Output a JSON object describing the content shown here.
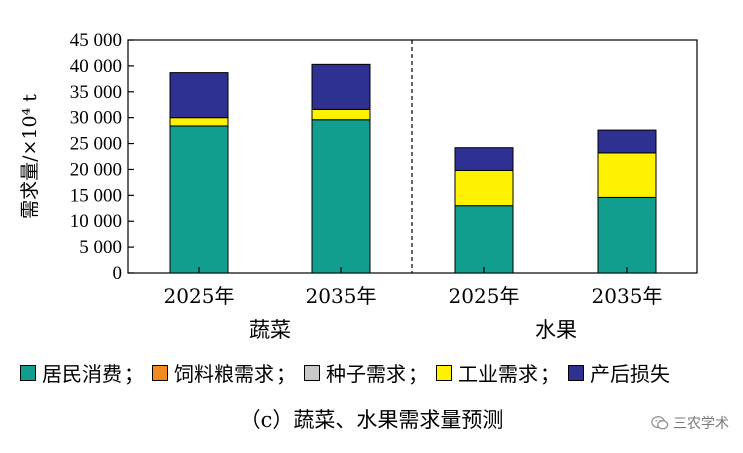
{
  "chart_data": {
    "type": "bar",
    "stacked": true,
    "ylabel": "需求量/×10⁴ t",
    "ylim": [
      0,
      45000
    ],
    "yticks": [
      "0",
      "5 000",
      "10 000",
      "15 000",
      "20 000",
      "25 000",
      "30 000",
      "35 000",
      "40 000",
      "45 000"
    ],
    "groups": [
      {
        "name": "蔬菜",
        "categories": [
          "2025年",
          "2035年"
        ]
      },
      {
        "name": "水果",
        "categories": [
          "2025年",
          "2035年"
        ]
      }
    ],
    "categories": [
      "2025年",
      "2035年",
      "2025年",
      "2035年"
    ],
    "series": [
      {
        "name": "居民消费",
        "color": "#129e8e",
        "values": [
          28400,
          29600,
          13000,
          14600
        ]
      },
      {
        "name": "饲料粮需求",
        "color": "#f28a1e",
        "values": [
          0,
          0,
          0,
          0
        ]
      },
      {
        "name": "种子需求",
        "color": "#c8c8c8",
        "values": [
          0,
          0,
          0,
          0
        ]
      },
      {
        "name": "工业需求",
        "color": "#fff200",
        "values": [
          1600,
          2000,
          6800,
          8600
        ]
      },
      {
        "name": "产后损失",
        "color": "#2e3192",
        "values": [
          8700,
          8700,
          4400,
          4400
        ]
      }
    ],
    "grid": false,
    "legend_position": "bottom"
  },
  "legend_sep": "；",
  "caption": "（c）蔬菜、水果需求量预测",
  "watermark": "三农学术"
}
